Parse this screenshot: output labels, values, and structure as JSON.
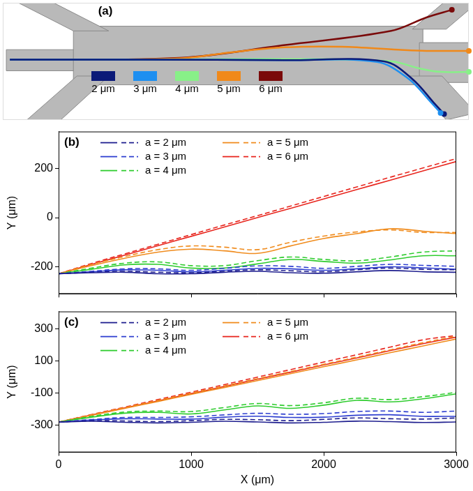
{
  "chart_data": [
    {
      "title": "(a)",
      "type": "line",
      "tick_labels": false,
      "legend": "center",
      "xlim": [
        0,
        660
      ],
      "ylim": [
        0,
        200
      ],
      "series": [
        {
          "name": "2 μm",
          "color": "#0b1a78",
          "x": [
            10,
            200,
            400,
            540,
            580,
            610,
            625
          ],
          "values": [
            103,
            103,
            102,
            100,
            70,
            30,
            10
          ]
        },
        {
          "name": "3 μm",
          "color": "#1e8ff0",
          "x": [
            10,
            200,
            400,
            530,
            575,
            605,
            620
          ],
          "values": [
            103,
            103,
            102,
            99,
            70,
            32,
            12
          ]
        },
        {
          "name": "4 μm",
          "color": "#88f088",
          "x": [
            10,
            200,
            400,
            550,
            590,
            620,
            660
          ],
          "values": [
            103,
            103,
            104,
            100,
            88,
            82,
            82
          ]
        },
        {
          "name": "5 μm",
          "color": "#f0891a",
          "x": [
            10,
            250,
            320,
            400,
            480,
            560,
            600,
            660
          ],
          "values": [
            103,
            105,
            115,
            124,
            125,
            120,
            118,
            118
          ]
        },
        {
          "name": "6 μm",
          "color": "#7a0a0a",
          "x": [
            10,
            250,
            400,
            550,
            600,
            636
          ],
          "values": [
            103,
            106,
            128,
            152,
            175,
            188
          ]
        }
      ]
    },
    {
      "title": "(b)",
      "type": "line",
      "tick_labels": "y",
      "grid": false,
      "legend": "top left",
      "y_label": "Y (μm)",
      "x": [
        0,
        250,
        500,
        750,
        1000,
        1250,
        1500,
        1750,
        2000,
        2250,
        2500,
        2750,
        3000
      ],
      "xlim": [
        0,
        3000
      ],
      "xticks": [
        0,
        1000,
        2000,
        3000
      ],
      "ylim": [
        -310,
        350
      ],
      "yticks": [
        -200,
        0,
        200
      ],
      "series": [
        {
          "name": "a = 2 μm",
          "color": "#1f1f8f",
          "line_style": "solid",
          "values": [
            -228,
            -224,
            -222,
            -228,
            -228,
            -222,
            -218,
            -224,
            -226,
            -220,
            -215,
            -220,
            -222
          ]
        },
        {
          "name": "a = 2 μm",
          "color": "#1f1f8f",
          "line_style": "dashed",
          "values": [
            -228,
            -222,
            -218,
            -222,
            -224,
            -218,
            -212,
            -216,
            -220,
            -212,
            -205,
            -210,
            -212
          ]
        },
        {
          "name": "a = 3 μm",
          "color": "#2e3fd0",
          "line_style": "solid",
          "values": [
            -228,
            -220,
            -212,
            -214,
            -220,
            -214,
            -206,
            -208,
            -214,
            -208,
            -200,
            -204,
            -210
          ]
        },
        {
          "name": "a = 3 μm",
          "color": "#2e3fd0",
          "line_style": "dashed",
          "values": [
            -228,
            -218,
            -208,
            -208,
            -214,
            -206,
            -196,
            -198,
            -206,
            -198,
            -190,
            -194,
            -198
          ]
        },
        {
          "name": "a = 4 μm",
          "color": "#2ecc2e",
          "line_style": "solid",
          "values": [
            -228,
            -210,
            -192,
            -190,
            -205,
            -205,
            -188,
            -170,
            -178,
            -185,
            -172,
            -155,
            -155
          ]
        },
        {
          "name": "a = 4 μm",
          "color": "#2ecc2e",
          "line_style": "dashed",
          "values": [
            -228,
            -205,
            -185,
            -180,
            -195,
            -195,
            -175,
            -160,
            -170,
            -175,
            -160,
            -140,
            -135
          ]
        },
        {
          "name": "a = 5 μm",
          "color": "#f08c1e",
          "line_style": "solid",
          "values": [
            -228,
            -195,
            -165,
            -140,
            -128,
            -135,
            -145,
            -115,
            -85,
            -65,
            -45,
            -55,
            -65
          ]
        },
        {
          "name": "a = 5 μm",
          "color": "#f08c1e",
          "line_style": "dashed",
          "values": [
            -228,
            -190,
            -158,
            -130,
            -115,
            -120,
            -130,
            -100,
            -75,
            -58,
            -50,
            -60,
            -60
          ]
        },
        {
          "name": "a = 6 μm",
          "color": "#e8261e",
          "line_style": "solid",
          "values": [
            -228,
            -190,
            -152,
            -114,
            -76,
            -38,
            0,
            38,
            76,
            114,
            152,
            190,
            228
          ]
        },
        {
          "name": "a = 6 μm",
          "color": "#e8261e",
          "line_style": "dashed",
          "values": [
            -228,
            -186,
            -147,
            -108,
            -69,
            -30,
            8,
            47,
            86,
            125,
            164,
            202,
            240
          ]
        }
      ]
    },
    {
      "title": "(c)",
      "type": "line",
      "tick_labels": true,
      "grid": false,
      "legend": "top left",
      "x_label": "X (μm)",
      "y_label": "Y (μm)",
      "x": [
        0,
        250,
        500,
        750,
        1000,
        1250,
        1500,
        1750,
        2000,
        2250,
        2500,
        2750,
        3000
      ],
      "xlim": [
        0,
        3000
      ],
      "xticks": [
        0,
        1000,
        2000,
        3000
      ],
      "ylim": [
        -470,
        410
      ],
      "yticks": [
        -300,
        -100,
        100,
        300
      ],
      "series": [
        {
          "name": "a = 2 μm",
          "color": "#1f1f8f",
          "line_style": "solid",
          "values": [
            -281,
            -276,
            -282,
            -286,
            -282,
            -276,
            -280,
            -286,
            -282,
            -275,
            -278,
            -283,
            -280
          ]
        },
        {
          "name": "a = 2 μm",
          "color": "#1f1f8f",
          "line_style": "dashed",
          "values": [
            -281,
            -272,
            -274,
            -278,
            -272,
            -264,
            -266,
            -272,
            -264,
            -255,
            -260,
            -262,
            -255
          ]
        },
        {
          "name": "a = 3 μm",
          "color": "#2e3fd0",
          "line_style": "solid",
          "values": [
            -281,
            -268,
            -260,
            -262,
            -262,
            -250,
            -244,
            -252,
            -250,
            -238,
            -235,
            -245,
            -245
          ]
        },
        {
          "name": "a = 3 μm",
          "color": "#2e3fd0",
          "line_style": "dashed",
          "values": [
            -281,
            -265,
            -252,
            -252,
            -248,
            -236,
            -226,
            -232,
            -228,
            -215,
            -212,
            -220,
            -212
          ]
        },
        {
          "name": "a = 4 μm",
          "color": "#2ecc2e",
          "line_style": "solid",
          "values": [
            -281,
            -250,
            -225,
            -220,
            -230,
            -205,
            -180,
            -195,
            -175,
            -145,
            -155,
            -135,
            -105
          ]
        },
        {
          "name": "a = 4 μm",
          "color": "#2ecc2e",
          "line_style": "dashed",
          "values": [
            -281,
            -245,
            -218,
            -212,
            -215,
            -190,
            -165,
            -178,
            -160,
            -132,
            -140,
            -122,
            -95
          ]
        },
        {
          "name": "a = 5 μm",
          "color": "#f08c1e",
          "line_style": "solid",
          "values": [
            -281,
            -238,
            -195,
            -152,
            -108,
            -65,
            -22,
            22,
            65,
            108,
            152,
            195,
            238
          ]
        },
        {
          "name": "a = 5 μm",
          "color": "#f08c1e",
          "line_style": "dashed",
          "values": [
            -281,
            -235,
            -190,
            -145,
            -100,
            -55,
            -10,
            35,
            80,
            125,
            170,
            215,
            255
          ]
        },
        {
          "name": "a = 6 μm",
          "color": "#e8261e",
          "line_style": "solid",
          "values": [
            -281,
            -236,
            -192,
            -148,
            -103,
            -58,
            -13,
            31,
            76,
            120,
            165,
            209,
            250
          ]
        },
        {
          "name": "a = 6 μm",
          "color": "#e8261e",
          "line_style": "dashed",
          "values": [
            -281,
            -233,
            -187,
            -140,
            -94,
            -47,
            0,
            47,
            94,
            140,
            187,
            233,
            260
          ]
        }
      ]
    }
  ]
}
